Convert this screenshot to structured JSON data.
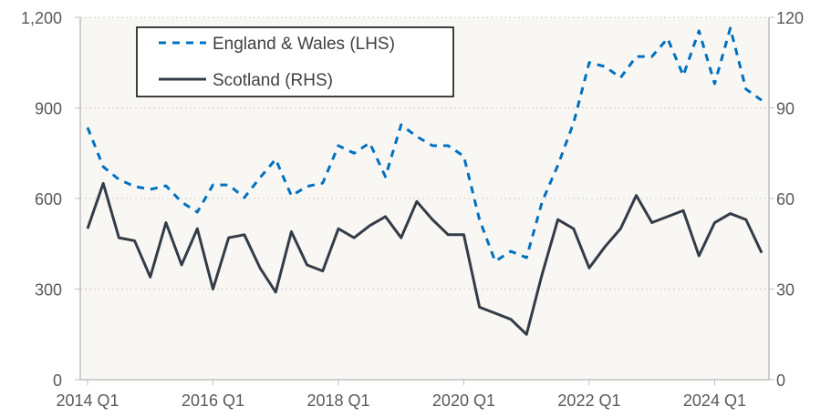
{
  "chart_data": {
    "type": "line",
    "title": "",
    "xlabel": "",
    "x_tick_labels": [
      "2014 Q1",
      "2016 Q1",
      "2018 Q1",
      "2020 Q1",
      "2022 Q1",
      "2024 Q1"
    ],
    "x": [
      "2014 Q1",
      "2014 Q2",
      "2014 Q3",
      "2014 Q4",
      "2015 Q1",
      "2015 Q2",
      "2015 Q3",
      "2015 Q4",
      "2016 Q1",
      "2016 Q2",
      "2016 Q3",
      "2016 Q4",
      "2017 Q1",
      "2017 Q2",
      "2017 Q3",
      "2017 Q4",
      "2018 Q1",
      "2018 Q2",
      "2018 Q3",
      "2018 Q4",
      "2019 Q1",
      "2019 Q2",
      "2019 Q3",
      "2019 Q4",
      "2020 Q1",
      "2020 Q2",
      "2020 Q3",
      "2020 Q4",
      "2021 Q1",
      "2021 Q2",
      "2021 Q3",
      "2021 Q4",
      "2022 Q1",
      "2022 Q2",
      "2022 Q3",
      "2022 Q4",
      "2023 Q1",
      "2023 Q2",
      "2023 Q3",
      "2023 Q4",
      "2024 Q1",
      "2024 Q2",
      "2024 Q3",
      "2024 Q4"
    ],
    "y_left": {
      "ylim": [
        0,
        1200
      ],
      "ticks": [
        "0",
        "300",
        "600",
        "900",
        "1,200"
      ]
    },
    "y_right": {
      "ylim": [
        0,
        120
      ],
      "ticks": [
        "0",
        "30",
        "60",
        "90",
        "120"
      ]
    },
    "grid": "horizontal dotted",
    "legend_position": "top-left",
    "series": [
      {
        "name": "England & Wales (LHS)",
        "axis": "left",
        "style": "dashed",
        "color": "#0070c0",
        "values": [
          835,
          705,
          663,
          640,
          630,
          642,
          588,
          555,
          645,
          645,
          603,
          669,
          730,
          609,
          640,
          651,
          775,
          750,
          784,
          672,
          844,
          805,
          775,
          775,
          740,
          530,
          392,
          425,
          404,
          590,
          710,
          850,
          1050,
          1037,
          1000,
          1070,
          1070,
          1130,
          1007,
          1155,
          980,
          1164,
          962,
          925
        ]
      },
      {
        "name": "Scotland (RHS)",
        "axis": "right",
        "style": "solid",
        "color": "#333c47",
        "values": [
          50,
          65,
          47,
          46,
          34,
          52,
          38,
          50,
          30,
          47,
          48,
          37,
          29,
          49,
          38,
          36,
          50,
          47,
          51,
          54,
          47,
          59,
          53,
          48,
          48,
          24,
          22,
          20,
          15,
          35,
          53,
          50,
          37,
          44,
          50,
          61,
          52,
          54,
          56,
          41,
          52,
          55,
          53,
          42
        ]
      }
    ],
    "plot_background": "#f8f7f4"
  }
}
